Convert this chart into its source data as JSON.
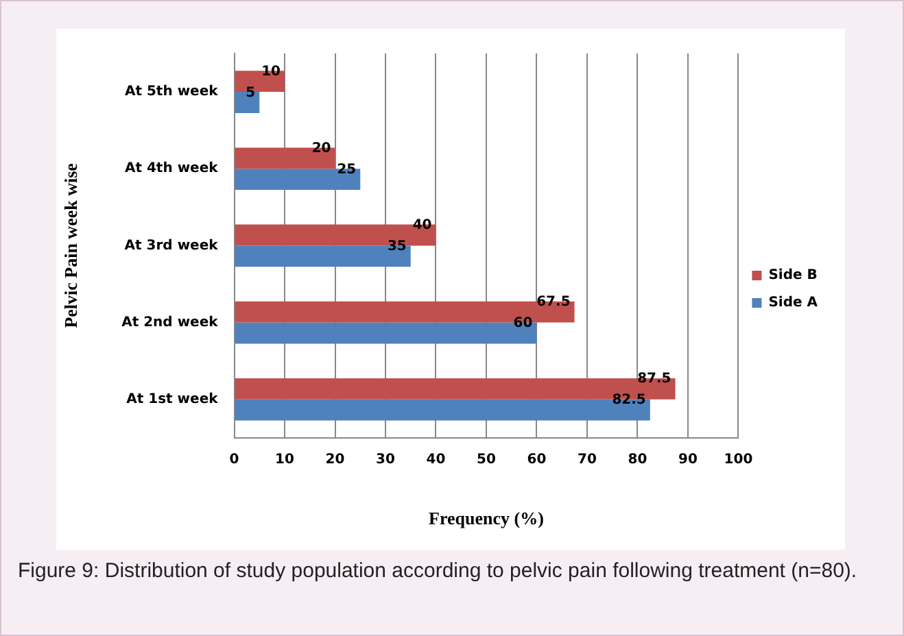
{
  "chart_data": {
    "type": "bar",
    "orientation": "horizontal",
    "ylabel": "Pelvic Pain week wise",
    "xlabel": "Frequency (%)",
    "categories": [
      "At 5th week",
      "At 4th week",
      "At 3rd week",
      "At 2nd week",
      "At 1st week"
    ],
    "series": [
      {
        "name": "Side B",
        "color": "#c0504d",
        "values": [
          10,
          20,
          40,
          67.5,
          87.5
        ]
      },
      {
        "name": "Side A",
        "color": "#4f81bd",
        "values": [
          5,
          25,
          35,
          60,
          82.5
        ]
      }
    ],
    "xlim": [
      0,
      100
    ],
    "xticks": [
      0,
      10,
      20,
      30,
      40,
      50,
      60,
      70,
      80,
      90,
      100
    ],
    "grid": "x",
    "legend": "right",
    "data_labels": true,
    "annotations": [
      "Figure 9: Distribution of study population according to pelvic pain following treatment (n=80)."
    ]
  }
}
